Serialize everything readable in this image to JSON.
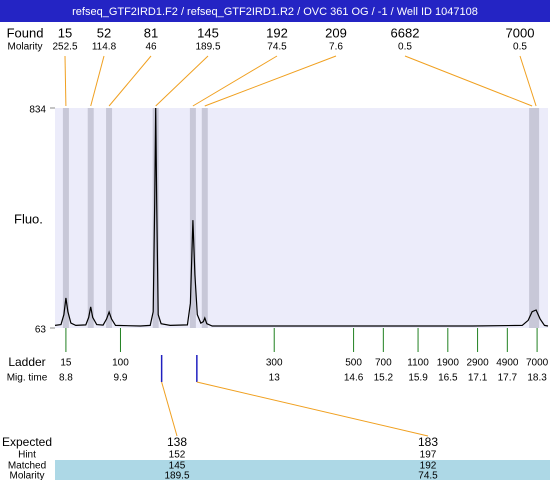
{
  "chart_data": {
    "type": "electropherogram",
    "title": "refseq_GTF2IRD1.F2 / refseq_GTF2IRD1.R2 / OVC 361 OG / -1 / Well ID 1047108",
    "y_label": "Fluo.",
    "ylim": [
      63,
      834
    ],
    "yticks": [
      63,
      834
    ],
    "xlim": [
      8.58,
      18.52
    ],
    "found": {
      "label": "Found",
      "molarity_label": "Molarity",
      "sizes": [
        15,
        52,
        81,
        145,
        192,
        209,
        6682,
        7000
      ],
      "molarity": [
        252.5,
        114.8,
        46,
        189.5,
        74.5,
        7.6,
        0.5,
        0.5
      ],
      "times": [
        8.8,
        9.3,
        9.67,
        10.61,
        11.36,
        11.6,
        18.2,
        18.28
      ]
    },
    "ladder": {
      "label": "Ladder",
      "time_label": "Mig. time",
      "sizes": [
        15,
        100,
        300,
        500,
        700,
        1100,
        1900,
        2900,
        4900,
        7000
      ],
      "times": [
        8.8,
        9.9,
        13,
        14.6,
        15.2,
        15.9,
        16.5,
        17.1,
        17.7,
        18.3
      ]
    },
    "expected": {
      "label": "Expected",
      "hint_label": "Hint",
      "matched_label": "Matched",
      "molarity_label": "Molarity",
      "sizes": [
        138,
        183
      ],
      "times": [
        10.73,
        11.44
      ],
      "hints": [
        152,
        197
      ],
      "matched": [
        145,
        192
      ],
      "molarity": [
        189.5,
        74.5
      ]
    },
    "trace": {
      "x": [
        8.58,
        8.7,
        8.76,
        8.8,
        8.84,
        8.9,
        9.0,
        9.2,
        9.26,
        9.3,
        9.34,
        9.42,
        9.55,
        9.62,
        9.67,
        9.72,
        9.8,
        10.3,
        10.5,
        10.56,
        10.59,
        10.61,
        10.63,
        10.66,
        10.72,
        10.9,
        11.25,
        11.31,
        11.36,
        11.4,
        11.45,
        11.52,
        11.57,
        11.6,
        11.64,
        11.75,
        13,
        15,
        17,
        18.0,
        18.12,
        18.2,
        18.28,
        18.36,
        18.45,
        18.52
      ],
      "y": [
        72,
        75,
        110,
        168,
        120,
        80,
        72,
        74,
        100,
        137,
        100,
        75,
        73,
        95,
        119,
        95,
        72,
        70,
        72,
        120,
        500,
        834,
        500,
        110,
        78,
        72,
        74,
        150,
        441,
        250,
        110,
        80,
        85,
        98,
        78,
        70,
        70,
        70,
        70,
        72,
        90,
        120,
        126,
        95,
        72,
        70
      ]
    }
  }
}
